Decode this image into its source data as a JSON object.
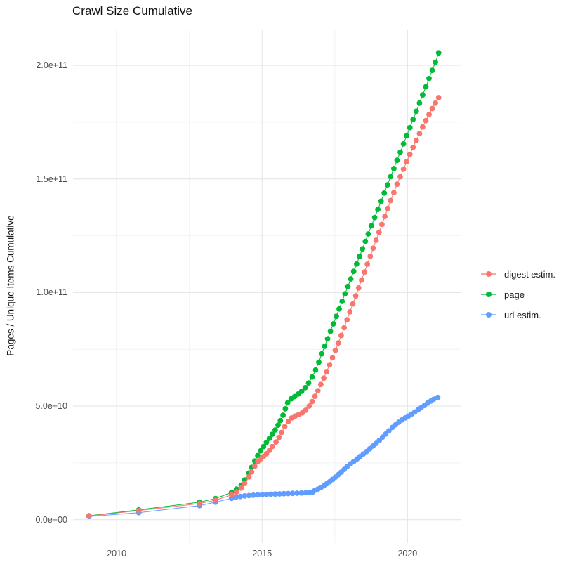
{
  "chart_data": {
    "type": "scatter",
    "title": "Crawl Size Cumulative",
    "xlabel": "",
    "ylabel": "Pages / Unique Items Cumulative",
    "value_unit": "items (series values in billions, 1e9)",
    "grid": "on",
    "legend_position": "right",
    "x_range": [
      2008.5,
      2021.85
    ],
    "y_range_billions": [
      -10.3,
      215.8
    ],
    "x_ticks": [
      {
        "label": "2010",
        "value": 2010
      },
      {
        "label": "2015",
        "value": 2015
      },
      {
        "label": "2020",
        "value": 2020
      }
    ],
    "x_minor_ticks": [
      2012.5,
      2017.5
    ],
    "y_ticks": [
      {
        "label": "0.0e+00",
        "value": 0
      },
      {
        "label": "5.0e+10",
        "value": 50
      },
      {
        "label": "1.0e+11",
        "value": 100
      },
      {
        "label": "1.5e+11",
        "value": 150
      },
      {
        "label": "2.0e+11",
        "value": 200
      }
    ],
    "y_minor_ticks": [
      25,
      75,
      125,
      175
    ],
    "series": [
      {
        "name": "page",
        "color": "#00BA38",
        "points": [
          [
            2009.05,
            1.7
          ],
          [
            2010.76,
            4.3
          ],
          [
            2012.85,
            7.7
          ],
          [
            2013.4,
            9.3
          ],
          [
            2013.95,
            12.0
          ],
          [
            2014.12,
            13.5
          ],
          [
            2014.28,
            15.2
          ],
          [
            2014.4,
            17.5
          ],
          [
            2014.55,
            20.5
          ],
          [
            2014.64,
            23.0
          ],
          [
            2014.75,
            25.8
          ],
          [
            2014.85,
            28.2
          ],
          [
            2014.95,
            30.3
          ],
          [
            2015.05,
            32.2
          ],
          [
            2015.15,
            34.0
          ],
          [
            2015.25,
            35.8
          ],
          [
            2015.35,
            37.6
          ],
          [
            2015.45,
            39.5
          ],
          [
            2015.55,
            41.6
          ],
          [
            2015.63,
            43.6
          ],
          [
            2015.72,
            46.0
          ],
          [
            2015.8,
            48.8
          ],
          [
            2015.88,
            51.5
          ],
          [
            2016.0,
            53.2
          ],
          [
            2016.12,
            54.2
          ],
          [
            2016.24,
            55.3
          ],
          [
            2016.36,
            56.5
          ],
          [
            2016.48,
            58.1
          ],
          [
            2016.6,
            60.2
          ],
          [
            2016.72,
            62.8
          ],
          [
            2016.84,
            65.9
          ],
          [
            2016.95,
            69.3
          ],
          [
            2017.05,
            73.0
          ],
          [
            2017.15,
            76.3
          ],
          [
            2017.25,
            79.6
          ],
          [
            2017.35,
            82.9
          ],
          [
            2017.45,
            86.2
          ],
          [
            2017.55,
            89.5
          ],
          [
            2017.65,
            92.8
          ],
          [
            2017.75,
            96.1
          ],
          [
            2017.85,
            99.4
          ],
          [
            2017.95,
            102.7
          ],
          [
            2018.05,
            106.0
          ],
          [
            2018.15,
            109.3
          ],
          [
            2018.25,
            112.6
          ],
          [
            2018.35,
            115.9
          ],
          [
            2018.45,
            119.2
          ],
          [
            2018.55,
            122.5
          ],
          [
            2018.65,
            125.8
          ],
          [
            2018.76,
            129.4
          ],
          [
            2018.87,
            133.0
          ],
          [
            2018.98,
            136.6
          ],
          [
            2019.09,
            140.2
          ],
          [
            2019.2,
            143.8
          ],
          [
            2019.31,
            147.4
          ],
          [
            2019.42,
            151.0
          ],
          [
            2019.53,
            154.6
          ],
          [
            2019.64,
            158.2
          ],
          [
            2019.75,
            161.8
          ],
          [
            2019.86,
            165.4
          ],
          [
            2019.97,
            169.0
          ],
          [
            2020.08,
            172.6
          ],
          [
            2020.19,
            176.2
          ],
          [
            2020.3,
            179.8
          ],
          [
            2020.41,
            183.4
          ],
          [
            2020.52,
            187.0
          ],
          [
            2020.63,
            190.6
          ],
          [
            2020.74,
            194.2
          ],
          [
            2020.85,
            197.8
          ],
          [
            2020.96,
            201.4
          ],
          [
            2021.07,
            205.5
          ]
        ]
      },
      {
        "name": "url estim.",
        "color": "#619CFF",
        "points": [
          [
            2009.05,
            1.4
          ],
          [
            2010.76,
            3.1
          ],
          [
            2012.85,
            6.2
          ],
          [
            2013.4,
            7.7
          ],
          [
            2013.95,
            9.4
          ],
          [
            2014.1,
            9.9
          ],
          [
            2014.25,
            10.2
          ],
          [
            2014.4,
            10.45
          ],
          [
            2014.55,
            10.6
          ],
          [
            2014.7,
            10.75
          ],
          [
            2014.85,
            10.9
          ],
          [
            2015.0,
            11.0
          ],
          [
            2015.15,
            11.1
          ],
          [
            2015.3,
            11.2
          ],
          [
            2015.45,
            11.3
          ],
          [
            2015.6,
            11.35
          ],
          [
            2015.75,
            11.45
          ],
          [
            2015.9,
            11.5
          ],
          [
            2016.05,
            11.6
          ],
          [
            2016.2,
            11.65
          ],
          [
            2016.35,
            11.75
          ],
          [
            2016.5,
            11.85
          ],
          [
            2016.62,
            11.95
          ],
          [
            2016.74,
            12.15
          ],
          [
            2016.82,
            13.0
          ],
          [
            2016.92,
            13.5
          ],
          [
            2017.02,
            14.1
          ],
          [
            2017.12,
            14.9
          ],
          [
            2017.22,
            15.8
          ],
          [
            2017.32,
            16.7
          ],
          [
            2017.42,
            17.7
          ],
          [
            2017.52,
            18.7
          ],
          [
            2017.62,
            19.8
          ],
          [
            2017.72,
            20.9
          ],
          [
            2017.82,
            22.1
          ],
          [
            2017.92,
            23.3
          ],
          [
            2018.04,
            24.6
          ],
          [
            2018.15,
            25.6
          ],
          [
            2018.26,
            26.7
          ],
          [
            2018.37,
            27.8
          ],
          [
            2018.48,
            28.9
          ],
          [
            2018.59,
            30.0
          ],
          [
            2018.7,
            31.2
          ],
          [
            2018.81,
            32.4
          ],
          [
            2018.92,
            33.6
          ],
          [
            2019.03,
            34.9
          ],
          [
            2019.14,
            36.3
          ],
          [
            2019.25,
            37.7
          ],
          [
            2019.36,
            39.1
          ],
          [
            2019.48,
            40.6
          ],
          [
            2019.59,
            41.8
          ],
          [
            2019.7,
            42.9
          ],
          [
            2019.81,
            43.9
          ],
          [
            2019.92,
            44.8
          ],
          [
            2020.03,
            45.6
          ],
          [
            2020.14,
            46.5
          ],
          [
            2020.25,
            47.4
          ],
          [
            2020.36,
            48.3
          ],
          [
            2020.47,
            49.3
          ],
          [
            2020.58,
            50.3
          ],
          [
            2020.69,
            51.3
          ],
          [
            2020.8,
            52.2
          ],
          [
            2020.9,
            53.0
          ],
          [
            2021.04,
            53.8
          ]
        ]
      },
      {
        "name": "digest estim.",
        "color": "#F8766D",
        "points": [
          [
            2009.05,
            1.6
          ],
          [
            2010.76,
            4.0
          ],
          [
            2012.85,
            7.1
          ],
          [
            2013.4,
            8.6
          ],
          [
            2013.95,
            10.9
          ],
          [
            2014.12,
            12.2
          ],
          [
            2014.28,
            13.9
          ],
          [
            2014.4,
            16.0
          ],
          [
            2014.55,
            18.8
          ],
          [
            2014.64,
            21.0
          ],
          [
            2014.75,
            23.5
          ],
          [
            2014.85,
            25.5
          ],
          [
            2014.95,
            26.8
          ],
          [
            2015.05,
            27.8
          ],
          [
            2015.15,
            29.0
          ],
          [
            2015.25,
            30.5
          ],
          [
            2015.35,
            32.2
          ],
          [
            2015.48,
            34.2
          ],
          [
            2015.58,
            36.2
          ],
          [
            2015.67,
            38.4
          ],
          [
            2015.78,
            41.0
          ],
          [
            2015.9,
            43.2
          ],
          [
            2016.02,
            44.8
          ],
          [
            2016.14,
            45.6
          ],
          [
            2016.26,
            46.3
          ],
          [
            2016.38,
            47.0
          ],
          [
            2016.5,
            48.2
          ],
          [
            2016.62,
            50.0
          ],
          [
            2016.72,
            52.0
          ],
          [
            2016.82,
            54.3
          ],
          [
            2016.92,
            56.8
          ],
          [
            2017.02,
            59.5
          ],
          [
            2017.12,
            62.3
          ],
          [
            2017.22,
            65.2
          ],
          [
            2017.32,
            68.2
          ],
          [
            2017.42,
            71.3
          ],
          [
            2017.52,
            74.5
          ],
          [
            2017.62,
            77.8
          ],
          [
            2017.72,
            81.1
          ],
          [
            2017.82,
            84.5
          ],
          [
            2017.92,
            88.0
          ],
          [
            2018.02,
            91.5
          ],
          [
            2018.12,
            95.0
          ],
          [
            2018.22,
            98.5
          ],
          [
            2018.32,
            102.0
          ],
          [
            2018.42,
            105.5
          ],
          [
            2018.52,
            109.0
          ],
          [
            2018.62,
            112.5
          ],
          [
            2018.72,
            116.0
          ],
          [
            2018.82,
            119.5
          ],
          [
            2018.92,
            123.0
          ],
          [
            2019.02,
            126.5
          ],
          [
            2019.12,
            130.0
          ],
          [
            2019.22,
            133.5
          ],
          [
            2019.32,
            137.0
          ],
          [
            2019.42,
            140.5
          ],
          [
            2019.53,
            144.0
          ],
          [
            2019.64,
            147.7
          ],
          [
            2019.75,
            151.0
          ],
          [
            2019.86,
            154.3
          ],
          [
            2019.97,
            157.6
          ],
          [
            2020.08,
            160.8
          ],
          [
            2020.19,
            163.9
          ],
          [
            2020.3,
            167.0
          ],
          [
            2020.41,
            170.0
          ],
          [
            2020.52,
            172.9
          ],
          [
            2020.63,
            175.7
          ],
          [
            2020.74,
            178.4
          ],
          [
            2020.85,
            181.0
          ],
          [
            2020.96,
            183.4
          ],
          [
            2021.07,
            185.8
          ]
        ]
      }
    ],
    "legend": {
      "items": [
        {
          "label": "digest estim.",
          "color": "#F8766D"
        },
        {
          "label": "page",
          "color": "#00BA38"
        },
        {
          "label": "url estim.",
          "color": "#619CFF"
        }
      ]
    },
    "colors": {
      "grid_major": "#e6e6e6",
      "grid_minor": "#f2f2f2",
      "tick_text": "#4d4d4d",
      "title_text": "#111111"
    }
  }
}
